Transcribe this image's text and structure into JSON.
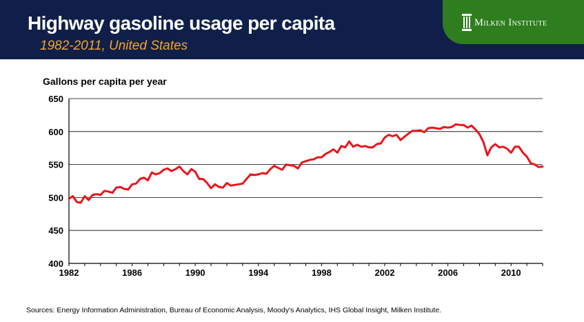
{
  "header": {
    "title": "Highway gasoline usage per capita",
    "subtitle": "1982-2011, United States",
    "logo_text": "Milken Institute",
    "logo_icon": "pillar-icon",
    "colors": {
      "header_bg": "#0f1f4a",
      "logo_bg": "#2e7d1e",
      "subtitle": "#f5a623",
      "line": "#e8151b"
    }
  },
  "footer": {
    "source": "Sources: Energy Information Administration, Bureau of Economic Analysis, Moody's Analytics,  IHS Global Insight, Milken Institute."
  },
  "chart_data": {
    "type": "line",
    "title": "Highway gasoline usage per capita",
    "subtitle": "1982-2011, United States",
    "xlabel": "",
    "ylabel": "Gallons per capita per year",
    "xlim": [
      1982,
      2012
    ],
    "ylim": [
      400,
      650
    ],
    "y_ticks": [
      400,
      450,
      500,
      550,
      600,
      650
    ],
    "x_ticks": [
      1982,
      1986,
      1990,
      1994,
      1998,
      2002,
      2006,
      2010
    ],
    "x_tick_labels": [
      "1982",
      "1986",
      "1990",
      "1994",
      "1998",
      "2002",
      "2006",
      "2010"
    ],
    "y_tick_labels": [
      "400",
      "450",
      "500",
      "550",
      "600",
      "650"
    ],
    "grid": "horizontal",
    "legend": "none",
    "series": [
      {
        "color": "#e8151b",
        "x": [
          1982.0,
          1982.25,
          1982.5,
          1982.75,
          1983.0,
          1983.25,
          1983.5,
          1983.75,
          1984.0,
          1984.25,
          1984.5,
          1984.75,
          1985.0,
          1985.25,
          1985.5,
          1985.75,
          1986.0,
          1986.25,
          1986.5,
          1986.75,
          1987.0,
          1987.25,
          1987.5,
          1987.75,
          1988.0,
          1988.25,
          1988.5,
          1988.75,
          1989.0,
          1989.25,
          1989.5,
          1989.75,
          1990.0,
          1990.25,
          1990.5,
          1990.75,
          1991.0,
          1991.25,
          1991.5,
          1991.75,
          1992.0,
          1992.25,
          1992.5,
          1992.75,
          1993.0,
          1993.25,
          1993.5,
          1993.75,
          1994.0,
          1994.25,
          1994.5,
          1994.75,
          1995.0,
          1995.25,
          1995.5,
          1995.75,
          1996.0,
          1996.25,
          1996.5,
          1996.75,
          1997.0,
          1997.25,
          1997.5,
          1997.75,
          1998.0,
          1998.25,
          1998.5,
          1998.75,
          1999.0,
          1999.25,
          1999.5,
          1999.75,
          2000.0,
          2000.25,
          2000.5,
          2000.75,
          2001.0,
          2001.25,
          2001.5,
          2001.75,
          2002.0,
          2002.25,
          2002.5,
          2002.75,
          2003.0,
          2003.25,
          2003.5,
          2003.75,
          2004.0,
          2004.25,
          2004.5,
          2004.75,
          2005.0,
          2005.25,
          2005.5,
          2005.75,
          2006.0,
          2006.25,
          2006.5,
          2006.75,
          2007.0,
          2007.25,
          2007.5,
          2007.75,
          2008.0,
          2008.25,
          2008.5,
          2008.75,
          2009.0,
          2009.25,
          2009.5,
          2009.75,
          2010.0,
          2010.25,
          2010.5,
          2010.75,
          2011.0,
          2011.25,
          2011.5,
          2011.75,
          2012.0
        ],
        "y": [
          498,
          502,
          493,
          492,
          502,
          496,
          504,
          505,
          504,
          510,
          509,
          507,
          515,
          516,
          513,
          512,
          520,
          521,
          528,
          530,
          526,
          538,
          535,
          537,
          542,
          544,
          540,
          543,
          547,
          540,
          535,
          543,
          539,
          528,
          528,
          522,
          514,
          520,
          516,
          515,
          522,
          518,
          519,
          520,
          521,
          528,
          535,
          534,
          535,
          537,
          536,
          543,
          548,
          545,
          542,
          550,
          549,
          548,
          544,
          553,
          555,
          557,
          558,
          561,
          561,
          566,
          569,
          573,
          568,
          578,
          576,
          585,
          577,
          580,
          577,
          578,
          576,
          576,
          581,
          582,
          591,
          595,
          593,
          595,
          587,
          592,
          597,
          601,
          601,
          602,
          599,
          605,
          606,
          605,
          604,
          607,
          606,
          607,
          611,
          610,
          610,
          606,
          609,
          603,
          596,
          584,
          564,
          576,
          581,
          576,
          577,
          574,
          568,
          577,
          577,
          568,
          562,
          552,
          550,
          546,
          547
        ]
      }
    ]
  }
}
